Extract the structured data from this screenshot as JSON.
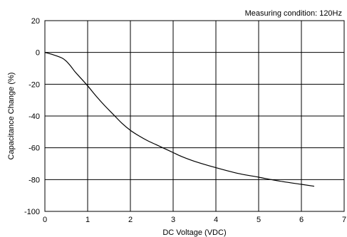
{
  "chart_data": {
    "type": "line",
    "title": "",
    "annotation": "Measuring condition: 120Hz",
    "xlabel": "DC Voltage (VDC)",
    "ylabel": "Capacitance Change (%)",
    "xlim": [
      0,
      7
    ],
    "ylim": [
      -100,
      20
    ],
    "x_ticks": [
      0,
      1,
      2,
      3,
      4,
      5,
      6,
      7
    ],
    "y_ticks": [
      20,
      0,
      -20,
      -40,
      -60,
      -80,
      -100
    ],
    "grid": true,
    "legend": "none",
    "colors": {
      "line": "#000000",
      "grid": "#000000",
      "background": "#ffffff"
    },
    "series": [
      {
        "x": [
          0,
          0.2,
          0.4,
          0.5,
          0.6,
          0.7,
          0.8,
          1.0,
          1.2,
          1.4,
          1.6,
          1.8,
          2.0,
          2.2,
          2.4,
          2.6,
          2.8,
          3.0,
          3.2,
          3.5,
          4.0,
          4.5,
          5.0,
          5.5,
          6.0,
          6.3
        ],
        "y": [
          0,
          -1.5,
          -3.5,
          -5.5,
          -8.5,
          -12,
          -15,
          -21,
          -27.5,
          -33.5,
          -39,
          -44.5,
          -49,
          -52.5,
          -55.5,
          -58,
          -60.5,
          -63,
          -65.5,
          -68.5,
          -72.5,
          -76,
          -78.5,
          -81,
          -83,
          -84.2
        ]
      }
    ]
  }
}
